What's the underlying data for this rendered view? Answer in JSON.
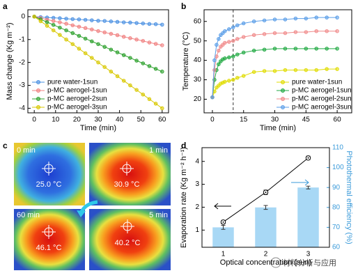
{
  "chart_data": [
    {
      "type": "line",
      "panel": "a",
      "xlabel": "Time (min)",
      "ylabel": "Mass change (Kg m⁻²)",
      "xlim": [
        -3,
        63
      ],
      "xticks": [
        0,
        10,
        20,
        30,
        40,
        50,
        60
      ],
      "ylim": [
        -4.2,
        0.3
      ],
      "yticks": [
        0,
        -1,
        -2,
        -3,
        -4
      ],
      "legend": "lower left",
      "x": [
        0,
        3,
        6,
        9,
        12,
        15,
        18,
        21,
        24,
        27,
        30,
        33,
        36,
        39,
        42,
        45,
        48,
        51,
        54,
        57,
        60
      ],
      "series": [
        {
          "name": "pure water-1sun",
          "color": "#4a90e2",
          "values": [
            0,
            -0.02,
            -0.04,
            -0.05,
            -0.07,
            -0.09,
            -0.11,
            -0.12,
            -0.14,
            -0.16,
            -0.18,
            -0.19,
            -0.21,
            -0.23,
            -0.25,
            -0.26,
            -0.28,
            -0.3,
            -0.32,
            -0.33,
            -0.35
          ]
        },
        {
          "name": "p-MC aerogel-1sun",
          "color": "#f08080",
          "values": [
            0,
            -0.06,
            -0.13,
            -0.19,
            -0.25,
            -0.31,
            -0.38,
            -0.44,
            -0.5,
            -0.56,
            -0.63,
            -0.69,
            -0.75,
            -0.81,
            -0.88,
            -0.94,
            -1.0,
            -1.06,
            -1.13,
            -1.19,
            -1.25
          ]
        },
        {
          "name": "p-MC aerogel-2sun",
          "color": "#2ca02c",
          "values": [
            0,
            -0.12,
            -0.24,
            -0.36,
            -0.48,
            -0.6,
            -0.72,
            -0.84,
            -0.96,
            -1.08,
            -1.2,
            -1.32,
            -1.44,
            -1.56,
            -1.68,
            -1.8,
            -1.92,
            -2.04,
            -2.16,
            -2.28,
            -2.4
          ]
        },
        {
          "name": "p-MC aerogel-3sun",
          "color": "#d8c800",
          "values": [
            0,
            -0.2,
            -0.4,
            -0.6,
            -0.8,
            -1.0,
            -1.2,
            -1.4,
            -1.6,
            -1.8,
            -2.0,
            -2.2,
            -2.4,
            -2.6,
            -2.8,
            -3.0,
            -3.2,
            -3.4,
            -3.6,
            -3.8,
            -4.0
          ]
        }
      ]
    },
    {
      "type": "line",
      "panel": "b",
      "xlabel": "Time (min)",
      "ylabel": "Temperature (°C)",
      "xlim": [
        -4,
        67
      ],
      "xticks": [
        0,
        15,
        30,
        45,
        60
      ],
      "ylim": [
        13,
        66
      ],
      "yticks": [
        20,
        30,
        40,
        50,
        60
      ],
      "legend": "lower right",
      "vline": 10,
      "x": [
        0,
        1,
        2,
        3,
        4,
        5,
        6,
        8,
        10,
        12,
        15,
        20,
        25,
        30,
        35,
        40,
        45,
        50,
        55,
        60
      ],
      "series": [
        {
          "name": "pure water-1sun",
          "color": "#e0dc00",
          "values": [
            21,
            24,
            26,
            27,
            28,
            28.5,
            29,
            29.5,
            30,
            31,
            32,
            34,
            34.5,
            34.5,
            35,
            35,
            35,
            35,
            35.5,
            35.5
          ]
        },
        {
          "name": "p-MC aerogel-1sun",
          "color": "#22aa44",
          "values": [
            21,
            30,
            35,
            38,
            39.5,
            40.5,
            41,
            41.5,
            42,
            43,
            44,
            45,
            45.5,
            46,
            46,
            46,
            46,
            46,
            46,
            46
          ]
        },
        {
          "name": "p-MC aerogel-2sun",
          "color": "#f08a8a",
          "values": [
            21,
            35,
            42,
            45,
            47,
            48,
            49,
            49.5,
            50,
            51,
            52,
            53,
            53.5,
            54,
            54,
            54.5,
            54.5,
            55,
            55,
            55
          ]
        },
        {
          "name": "p-MC aerogel-3sun",
          "color": "#5b9ee8",
          "values": [
            21,
            40,
            48,
            51,
            53,
            54,
            55,
            56,
            57,
            58,
            59,
            60,
            60.5,
            61,
            61,
            61.5,
            61.5,
            62,
            62,
            62
          ]
        }
      ]
    },
    {
      "type": "bar_line",
      "panel": "d",
      "xlabel": "Optical concentration (sun)",
      "ylabel": "Evaporation  rate (Kg m⁻² h⁻¹)",
      "y2label": "Photothermal efficiency (%)",
      "y2_axis_color": "#3a9ad9",
      "categories": [
        "1",
        "2",
        "3"
      ],
      "ylim": [
        0.25,
        4.6
      ],
      "yticks": [
        1,
        2,
        3,
        4
      ],
      "y2lim": [
        60,
        110
      ],
      "y2ticks": [
        60,
        70,
        80,
        90,
        100,
        110
      ],
      "series": [
        {
          "type": "bar",
          "axis": "y2",
          "color": "#a8d8f5",
          "values": [
            70,
            80,
            90
          ],
          "errors": [
            1,
            1,
            0.7
          ]
        },
        {
          "type": "line",
          "color": "#000000",
          "values": [
            1.35,
            2.65,
            4.15
          ],
          "errors": [
            0.08,
            0.1,
            0.08
          ]
        }
      ]
    }
  ],
  "panel_c": {
    "panel": "c",
    "images": [
      {
        "time": "0 min",
        "temperature": "25.0 °C"
      },
      {
        "time": "1 min",
        "temperature": "30.9 °C"
      },
      {
        "time": "60 min",
        "temperature": "46.1 °C"
      },
      {
        "time": "5 min",
        "temperature": "40.2 °C"
      }
    ]
  },
  "watermark": "材料分析与应用"
}
